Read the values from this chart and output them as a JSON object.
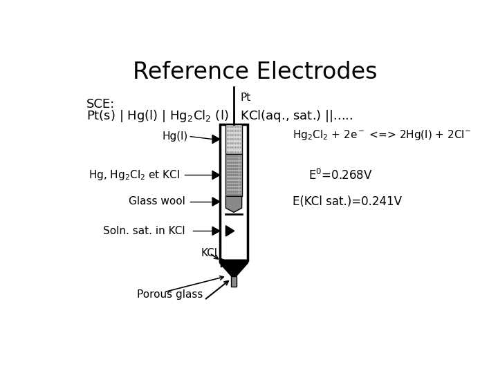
{
  "title": "Reference Electrodes",
  "title_fontsize": 24,
  "title_fontfamily": "sans-serif",
  "bg_color": "#ffffff",
  "text_color": "#000000",
  "sce_line1": "SCE:",
  "sce_line2": "Pt(s) | Hg(l) | Hg$_2$Cl$_2$ (l) | KCl(aq., sat.) ||.....",
  "label_Pt": "Pt",
  "label_Hg": "Hg(l)",
  "label_HgCl": "Hg, Hg$_2$Cl$_2$ et KCl",
  "label_glass": "Glass wool",
  "label_soln": "Soln. sat. in KCl",
  "label_KCl": "KCl",
  "label_porous": "Porous glass",
  "rxn_line": "Hg$_2$Cl$_2$ + 2e$^-$ <=> 2Hg(l) + 2Cl$^{-}$",
  "e0_line": "E$^0$=0.268V",
  "ekcl_line": "E(KCl sat.)=0.241V",
  "text_fontsize": 11,
  "sce_fontsize": 13
}
